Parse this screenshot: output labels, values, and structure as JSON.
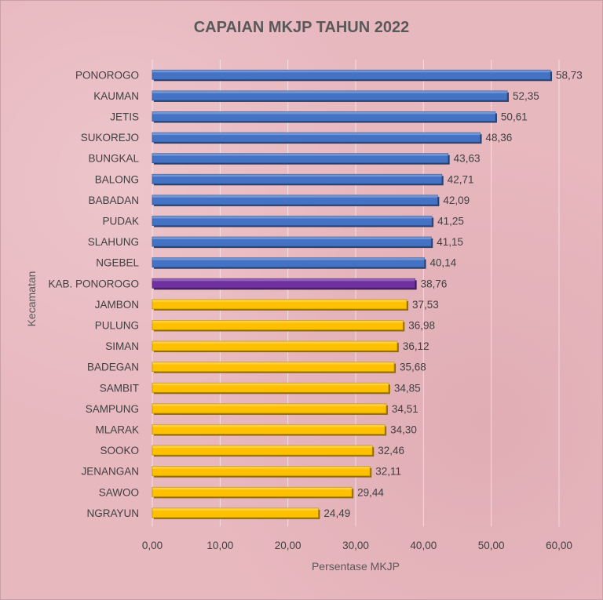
{
  "chart_data": {
    "type": "bar",
    "orientation": "horizontal",
    "title": "CAPAIAN MKJP TAHUN 2022",
    "xlabel": "Persentase MKJP",
    "ylabel": "Kecamatan",
    "xlim": [
      0,
      60
    ],
    "x_ticks": [
      "0,00",
      "10,00",
      "20,00",
      "30,00",
      "40,00",
      "50,00",
      "60,00"
    ],
    "categories": [
      "PONOROGO",
      "KAUMAN",
      "JETIS",
      "SUKOREJO",
      "BUNGKAL",
      "BALONG",
      "BABADAN",
      "PUDAK",
      "SLAHUNG",
      "NGEBEL",
      "KAB. PONOROGO",
      "JAMBON",
      "PULUNG",
      "SIMAN",
      "BADEGAN",
      "SAMBIT",
      "SAMPUNG",
      "MLARAK",
      "SOOKO",
      "JENANGAN",
      "SAWOO",
      "NGRAYUN"
    ],
    "values": [
      58.73,
      52.35,
      50.61,
      48.36,
      43.63,
      42.71,
      42.09,
      41.25,
      41.15,
      40.14,
      38.76,
      37.53,
      36.98,
      36.12,
      35.68,
      34.85,
      34.51,
      34.3,
      32.46,
      32.11,
      29.44,
      24.49
    ],
    "value_labels": [
      "58,73",
      "52,35",
      "50,61",
      "48,36",
      "43,63",
      "42,71",
      "42,09",
      "41,25",
      "41,15",
      "40,14",
      "38,76",
      "37,53",
      "36,98",
      "36,12",
      "35,68",
      "34,85",
      "34,51",
      "34,30",
      "32,46",
      "32,11",
      "29,44",
      "24,49"
    ],
    "bar_colors": [
      "#4472c4",
      "#4472c4",
      "#4472c4",
      "#4472c4",
      "#4472c4",
      "#4472c4",
      "#4472c4",
      "#4472c4",
      "#4472c4",
      "#4472c4",
      "#7030a0",
      "#ffc000",
      "#ffc000",
      "#ffc000",
      "#ffc000",
      "#ffc000",
      "#ffc000",
      "#ffc000",
      "#ffc000",
      "#ffc000",
      "#ffc000",
      "#ffc000"
    ],
    "grid": true,
    "legend": "none"
  }
}
